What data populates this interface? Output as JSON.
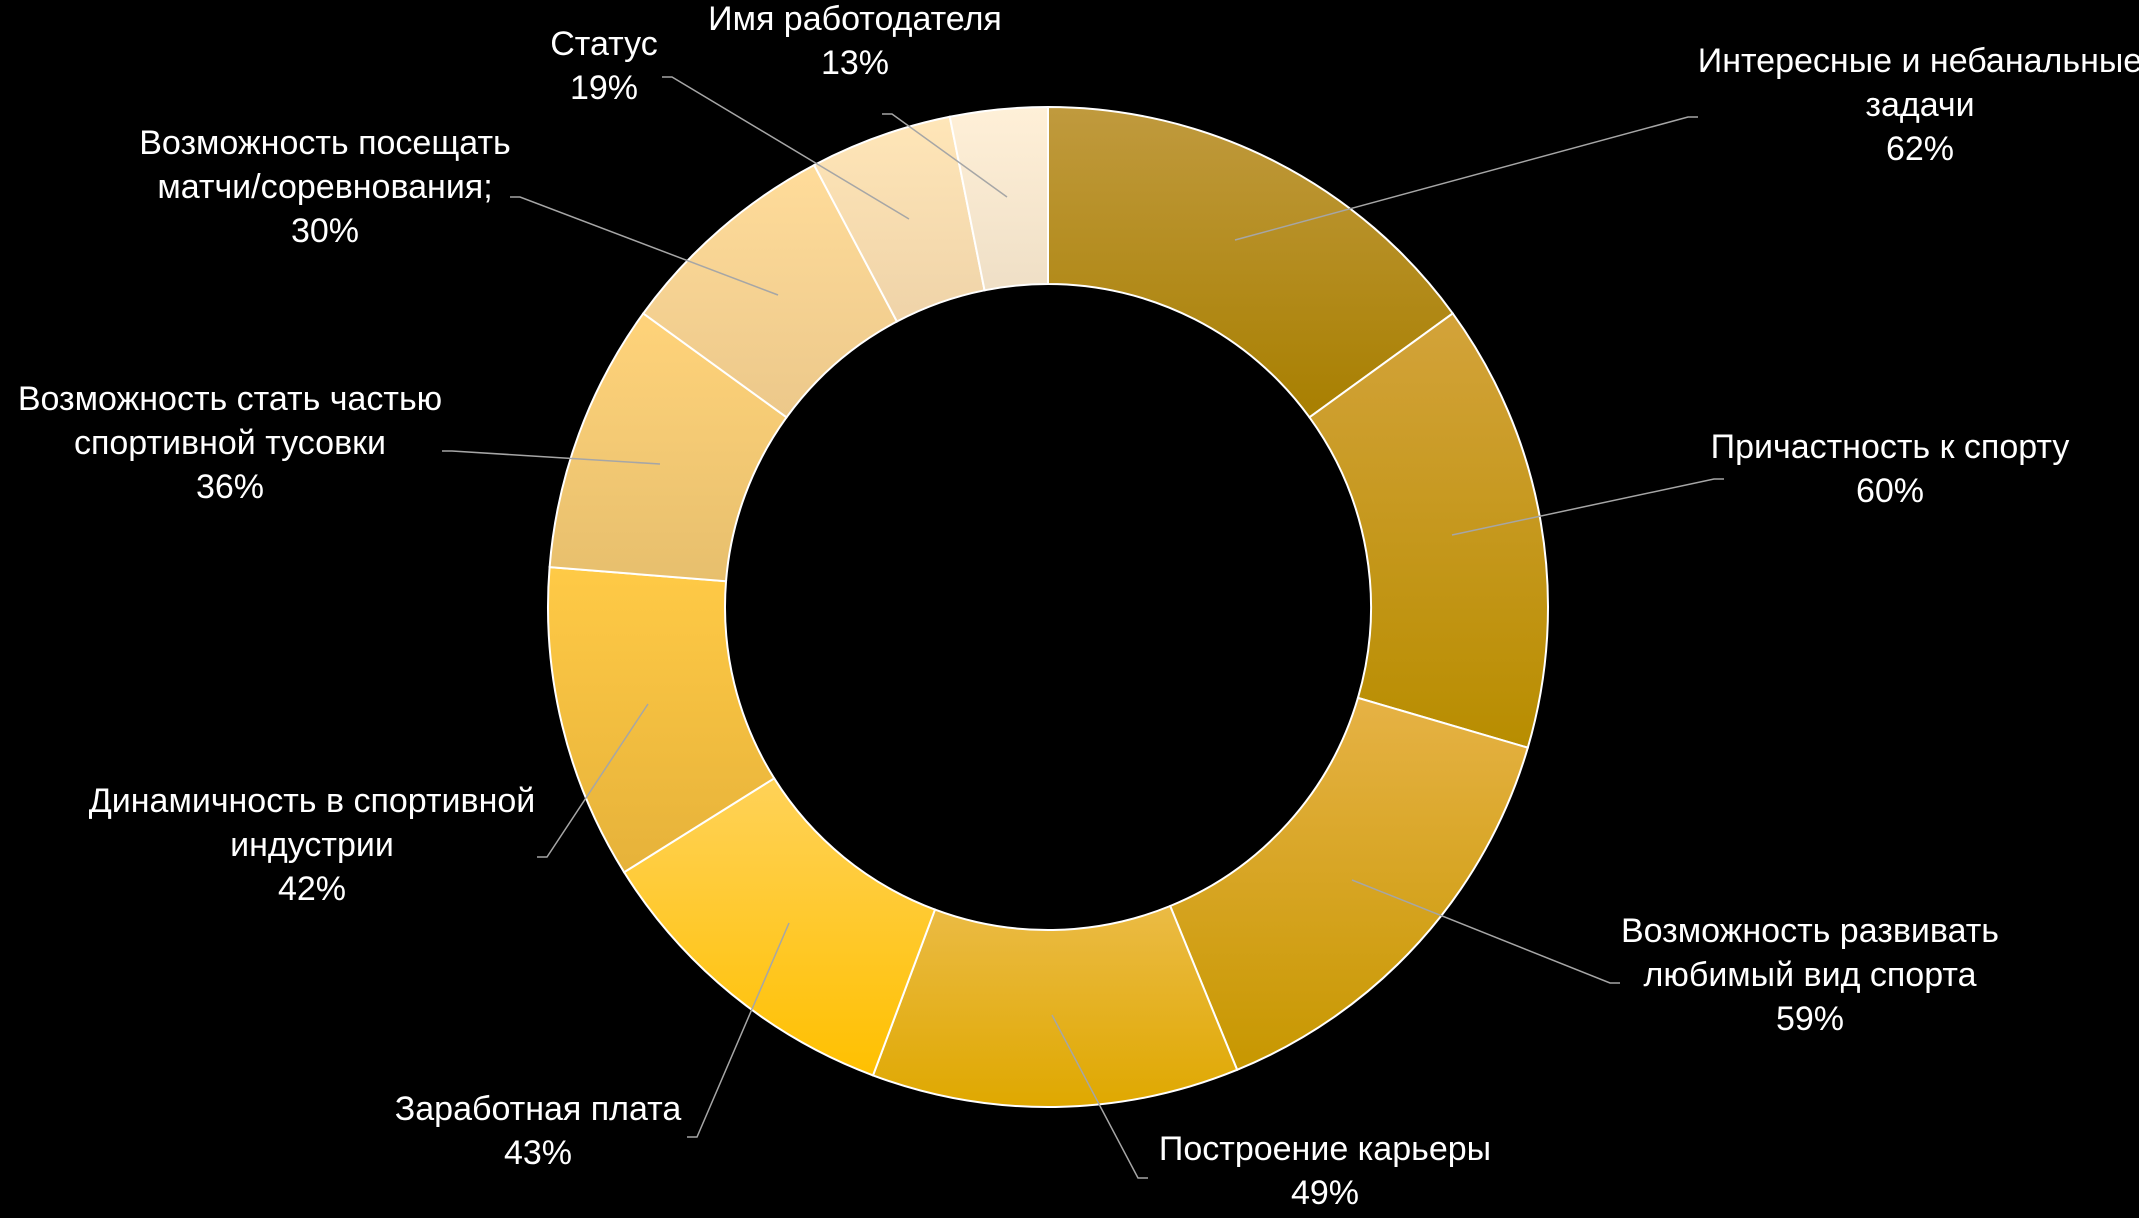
{
  "chart_data": {
    "type": "pie",
    "variant": "donut",
    "title": "",
    "legend": "none",
    "slices": [
      {
        "label": [
          "Интересные и небанальные",
          "задачи"
        ],
        "value": 62,
        "value_label": "62%",
        "color_top": "#c09a3e",
        "color_bottom": "#a87f00"
      },
      {
        "label": [
          "Причастность к спорту"
        ],
        "value": 60,
        "value_label": "60%",
        "color_top": "#d3a33a",
        "color_bottom": "#b88d00"
      },
      {
        "label": [
          "Возможность развивать",
          "любимый вид спорта"
        ],
        "value": 59,
        "value_label": "59%",
        "color_top": "#e6b245",
        "color_bottom": "#c79700"
      },
      {
        "label": [
          "Построение карьеры"
        ],
        "value": 49,
        "value_label": "49%",
        "color_top": "#ebbb45",
        "color_bottom": "#dfa800"
      },
      {
        "label": [
          "Заработная плата"
        ],
        "value": 43,
        "value_label": "43%",
        "color_top": "#ffd258",
        "color_bottom": "#ffc000"
      },
      {
        "label": [
          "Динамичность в спортивной",
          "индустрии"
        ],
        "value": 42,
        "value_label": "42%",
        "color_top": "#ffca46",
        "color_bottom": "#e6b23a"
      },
      {
        "label": [
          "Возможность стать частью",
          "спортивной тусовки"
        ],
        "value": 36,
        "value_label": "36%",
        "color_top": "#ffd37a",
        "color_bottom": "#e7bf6d"
      },
      {
        "label": [
          "Возможность посещать",
          "матчи/соревнования;"
        ],
        "value": 30,
        "value_label": "30%",
        "color_top": "#ffdc9a",
        "color_bottom": "#ecc88a"
      },
      {
        "label": [
          "Статус"
        ],
        "value": 19,
        "value_label": "19%",
        "color_top": "#ffe6b8",
        "color_bottom": "#efd3a8"
      },
      {
        "label": [
          "Имя работодателя"
        ],
        "value": 13,
        "value_label": "13%",
        "color_top": "#fff0d8",
        "color_bottom": "#efdfc6"
      }
    ]
  }
}
